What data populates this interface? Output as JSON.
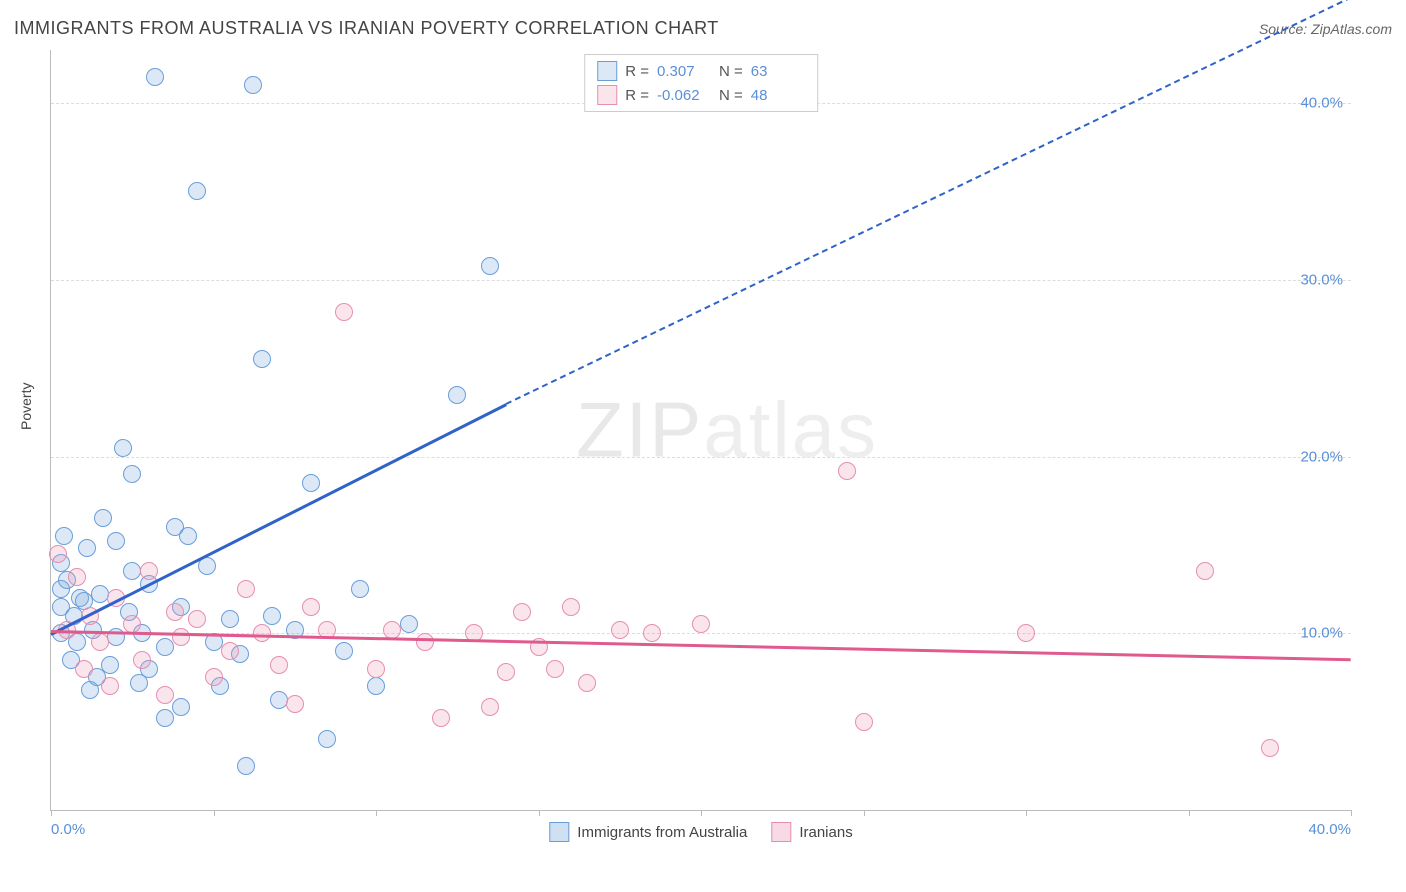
{
  "title": "IMMIGRANTS FROM AUSTRALIA VS IRANIAN POVERTY CORRELATION CHART",
  "source": "Source: ZipAtlas.com",
  "watermark": {
    "part1": "ZIP",
    "part2": "atlas"
  },
  "ylabel": "Poverty",
  "chart": {
    "type": "scatter",
    "xlim": [
      0,
      40
    ],
    "ylim": [
      0,
      43
    ],
    "x_ticks": [
      0,
      5,
      10,
      15,
      20,
      25,
      30,
      35,
      40
    ],
    "x_tick_labels": {
      "0": "0.0%",
      "40": "40.0%"
    },
    "y_ticks": [
      10,
      20,
      30,
      40
    ],
    "y_tick_labels": [
      "10.0%",
      "20.0%",
      "30.0%",
      "40.0%"
    ],
    "grid_color": "#dddddd",
    "axis_color": "#bbbbbb",
    "background_color": "#ffffff",
    "tick_label_color": "#5b8fd6",
    "marker_radius": 8,
    "marker_stroke_width": 1.5,
    "marker_fill_opacity": 0.25
  },
  "series": [
    {
      "name": "Immigrants from Australia",
      "color_stroke": "#6a9ed9",
      "color_fill": "rgba(120,165,220,0.25)",
      "R": "0.307",
      "N": "63",
      "trend": {
        "color": "#2f63c9",
        "width": 3,
        "x0": 0,
        "y0": 10,
        "x1": 14,
        "y1": 23,
        "dash_x2": 40,
        "dash_y2": 46
      },
      "points": [
        [
          0.3,
          10
        ],
        [
          0.3,
          11.5
        ],
        [
          0.3,
          14
        ],
        [
          0.3,
          12.5
        ],
        [
          0.4,
          15.5
        ],
        [
          0.5,
          13
        ],
        [
          0.6,
          8.5
        ],
        [
          0.7,
          11
        ],
        [
          0.8,
          9.5
        ],
        [
          0.9,
          12
        ],
        [
          1.0,
          11.8
        ],
        [
          1.1,
          14.8
        ],
        [
          1.2,
          6.8
        ],
        [
          1.3,
          10.2
        ],
        [
          1.4,
          7.5
        ],
        [
          1.5,
          12.2
        ],
        [
          1.6,
          16.5
        ],
        [
          1.8,
          8.2
        ],
        [
          2.0,
          9.8
        ],
        [
          2.0,
          15.2
        ],
        [
          2.2,
          20.5
        ],
        [
          2.4,
          11.2
        ],
        [
          2.5,
          13.5
        ],
        [
          2.5,
          19
        ],
        [
          2.7,
          7.2
        ],
        [
          2.8,
          10.0
        ],
        [
          3.0,
          8.0
        ],
        [
          3.0,
          12.8
        ],
        [
          3.2,
          41.5
        ],
        [
          3.5,
          5.2
        ],
        [
          3.5,
          9.2
        ],
        [
          3.8,
          16
        ],
        [
          4.0,
          11.5
        ],
        [
          4.0,
          5.8
        ],
        [
          4.2,
          15.5
        ],
        [
          4.5,
          35
        ],
        [
          4.8,
          13.8
        ],
        [
          5.0,
          9.5
        ],
        [
          5.2,
          7.0
        ],
        [
          5.5,
          10.8
        ],
        [
          5.8,
          8.8
        ],
        [
          6.0,
          2.5
        ],
        [
          6.2,
          41
        ],
        [
          6.5,
          25.5
        ],
        [
          6.8,
          11.0
        ],
        [
          7.0,
          6.2
        ],
        [
          7.5,
          10.2
        ],
        [
          8.0,
          18.5
        ],
        [
          8.5,
          4.0
        ],
        [
          9.0,
          9.0
        ],
        [
          9.5,
          12.5
        ],
        [
          10.0,
          7.0
        ],
        [
          11.0,
          10.5
        ],
        [
          12.5,
          23.5
        ],
        [
          13.5,
          30.8
        ]
      ]
    },
    {
      "name": "Iranians",
      "color_stroke": "#e68fb0",
      "color_fill": "rgba(235,150,185,0.25)",
      "R": "-0.062",
      "N": "48",
      "trend": {
        "color": "#e05a8d",
        "width": 3,
        "x0": 0,
        "y0": 10.2,
        "x1": 40,
        "y1": 8.6,
        "dash_x2": null,
        "dash_y2": null
      },
      "points": [
        [
          0.2,
          14.5
        ],
        [
          0.5,
          10.2
        ],
        [
          0.8,
          13.2
        ],
        [
          1.0,
          8.0
        ],
        [
          1.2,
          11.0
        ],
        [
          1.5,
          9.5
        ],
        [
          1.8,
          7.0
        ],
        [
          2.0,
          12.0
        ],
        [
          2.5,
          10.5
        ],
        [
          2.8,
          8.5
        ],
        [
          3.0,
          13.5
        ],
        [
          3.5,
          6.5
        ],
        [
          3.8,
          11.2
        ],
        [
          4.0,
          9.8
        ],
        [
          4.5,
          10.8
        ],
        [
          5.0,
          7.5
        ],
        [
          5.5,
          9.0
        ],
        [
          6.0,
          12.5
        ],
        [
          6.5,
          10.0
        ],
        [
          7.0,
          8.2
        ],
        [
          7.5,
          6.0
        ],
        [
          8.0,
          11.5
        ],
        [
          8.5,
          10.2
        ],
        [
          9.0,
          28.2
        ],
        [
          10.0,
          8.0
        ],
        [
          10.5,
          10.2
        ],
        [
          11.5,
          9.5
        ],
        [
          12.0,
          5.2
        ],
        [
          13.0,
          10.0
        ],
        [
          13.5,
          5.8
        ],
        [
          14.0,
          7.8
        ],
        [
          14.5,
          11.2
        ],
        [
          15.0,
          9.2
        ],
        [
          15.5,
          8.0
        ],
        [
          16.0,
          11.5
        ],
        [
          16.5,
          7.2
        ],
        [
          17.5,
          10.2
        ],
        [
          18.5,
          10.0
        ],
        [
          20.0,
          10.5
        ],
        [
          24.5,
          19.2
        ],
        [
          25.0,
          5.0
        ],
        [
          30.0,
          10.0
        ],
        [
          35.5,
          13.5
        ],
        [
          37.5,
          3.5
        ]
      ]
    }
  ],
  "legend_bottom": [
    {
      "label": "Immigrants from Australia",
      "stroke": "#6a9ed9",
      "fill": "rgba(120,165,220,0.35)"
    },
    {
      "label": "Iranians",
      "stroke": "#e68fb0",
      "fill": "rgba(235,150,185,0.35)"
    }
  ]
}
